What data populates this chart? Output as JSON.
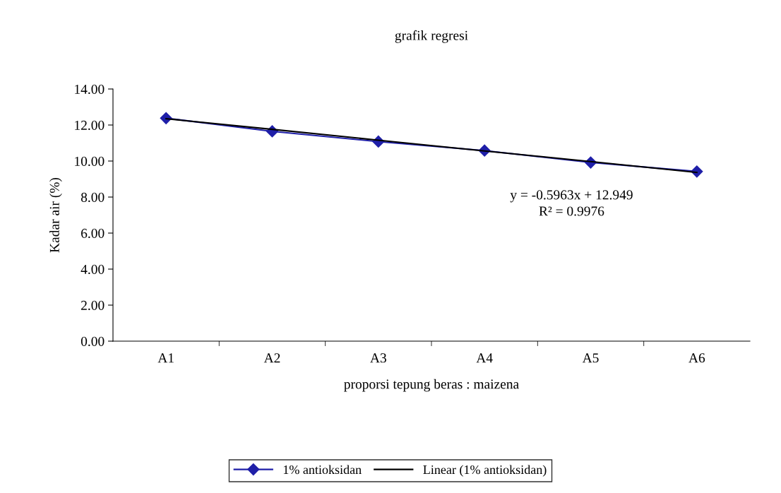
{
  "chart_data": {
    "type": "line",
    "title": "grafik regresi",
    "xlabel": "proporsi tepung beras : maizena",
    "ylabel": "Kadar air (%)",
    "categories": [
      "A1",
      "A2",
      "A3",
      "A4",
      "A5",
      "A6"
    ],
    "series": [
      {
        "name": "1% antioksidan",
        "color": "#1f1fa8",
        "marker": "diamond",
        "values": [
          12.38,
          11.65,
          11.08,
          10.58,
          9.92,
          9.42
        ]
      },
      {
        "name": "Linear (1% antioksidan)",
        "color": "#000000",
        "marker": "none",
        "values": [
          12.35,
          11.76,
          11.16,
          10.56,
          9.97,
          9.37
        ]
      }
    ],
    "ylim": [
      0,
      14
    ],
    "yticks": [
      {
        "value": 0,
        "label": "0.00"
      },
      {
        "value": 2,
        "label": "2.00"
      },
      {
        "value": 4,
        "label": "4.00"
      },
      {
        "value": 6,
        "label": "6.00"
      },
      {
        "value": 8,
        "label": "8.00"
      },
      {
        "value": 10,
        "label": "10.00"
      },
      {
        "value": 12,
        "label": "12.00"
      },
      {
        "value": 14,
        "label": "14.00"
      }
    ],
    "annotations": [
      "y = -0.5963x + 12.949\nR² = 0.9976"
    ],
    "grid": false,
    "legend": "bottom",
    "line_style": "solid"
  }
}
